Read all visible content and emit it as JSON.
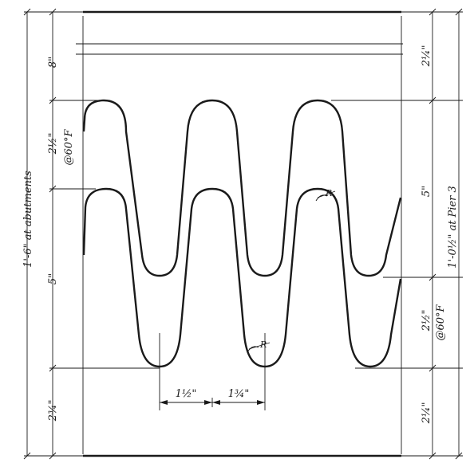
{
  "drawing": {
    "type": "finger-plate expansion joint detail",
    "dimensions": {
      "top_left": "8\"",
      "top_right": "2¼\"",
      "gap_left": "2½\"",
      "temp_left": "@60°F",
      "overall_left": "1'-6\" at abutments",
      "middle_left": "5\"",
      "middle_right": "5\"",
      "overall_right": "1'-0½\" at Pier 3",
      "gap_right": "2½\"",
      "temp_right": "@60°F",
      "bottom_left": "2¾\"",
      "bottom_right": "2¼\"",
      "finger_width_a": "1½\"",
      "finger_width_b": "1¾\"",
      "radius_upper": "R",
      "radius_lower": "R"
    }
  }
}
